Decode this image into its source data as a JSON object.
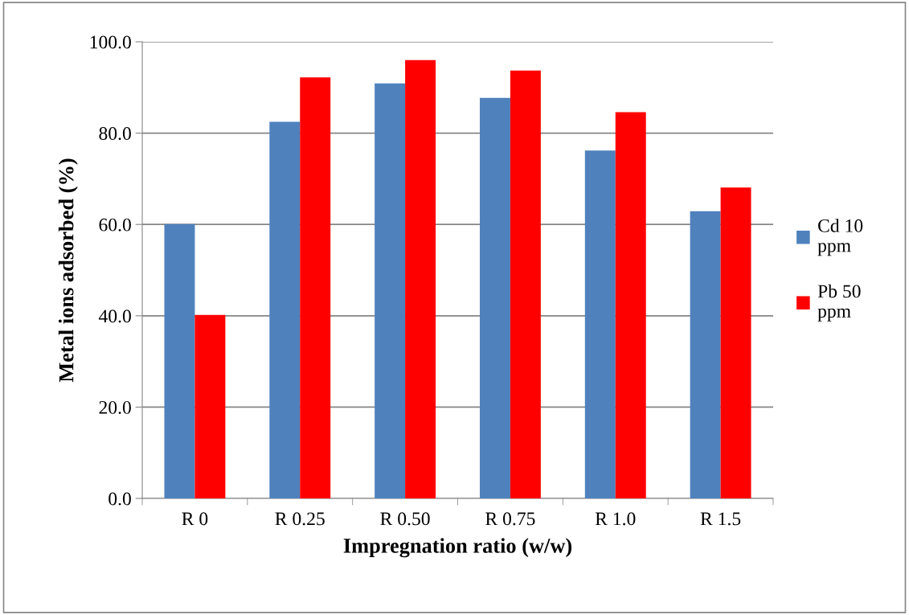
{
  "chart_data": {
    "type": "bar",
    "xlabel": "Impregnation ratio (w/w)",
    "ylabel": "Metal ions adsorbed (%)",
    "categories": [
      "R 0",
      "R 0.25",
      "R 0.50",
      "R 0.75",
      "R 1.0",
      "R 1.5"
    ],
    "series": [
      {
        "name": "Cd 10 ppm",
        "color": "#4f81bd",
        "values": [
          60.1,
          82.5,
          90.9,
          87.7,
          76.2,
          62.9
        ]
      },
      {
        "name": "Pb 50 ppm",
        "color": "#ff0000",
        "values": [
          40.2,
          92.2,
          96.0,
          93.7,
          84.6,
          68.1
        ]
      }
    ],
    "ylim": [
      0,
      100
    ],
    "yticks": [
      {
        "value": 0,
        "label": "0.0"
      },
      {
        "value": 20,
        "label": "20.0"
      },
      {
        "value": 40,
        "label": "40.0"
      },
      {
        "value": 60,
        "label": "60.0"
      },
      {
        "value": 80,
        "label": "80.0"
      },
      {
        "value": 100,
        "label": "100.0"
      }
    ],
    "grid": "y",
    "legend": "right"
  }
}
